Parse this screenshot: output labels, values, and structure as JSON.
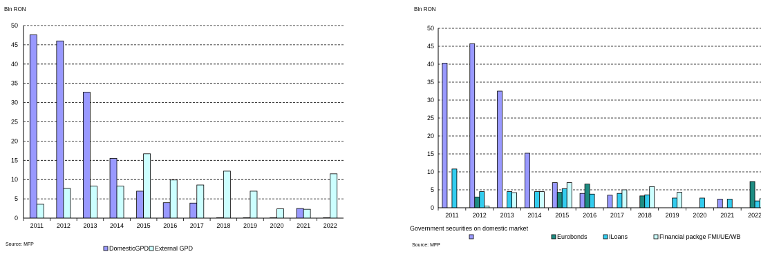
{
  "colors": {
    "domestic": "#9999FF",
    "external": "#CCFFFF",
    "eurobonds": "#1E8C82",
    "iloans": "#33CCEE",
    "fmi": "#CCFFFF"
  },
  "chart_data": [
    {
      "type": "bar",
      "unit_label": "Bln RON",
      "categories": [
        "2011",
        "2012",
        "2013",
        "2014",
        "2015",
        "2016",
        "2017",
        "2018",
        "2019",
        "2020",
        "2021",
        "2022"
      ],
      "ylim": [
        0,
        50
      ],
      "yticks": [
        0,
        5,
        10,
        15,
        20,
        25,
        30,
        35,
        40,
        45,
        50
      ],
      "series": [
        {
          "name": "DomesticGPD",
          "color_key": "domestic",
          "values": [
            47.6,
            46.0,
            32.7,
            15.5,
            7.0,
            4.0,
            3.9,
            0.1,
            0.1,
            0.1,
            2.5,
            0.1
          ]
        },
        {
          "name": "External GPD",
          "color_key": "external",
          "values": [
            3.6,
            7.7,
            8.3,
            8.3,
            16.7,
            9.9,
            8.6,
            12.2,
            7.0,
            2.4,
            2.3,
            11.5
          ]
        }
      ],
      "source": "Source: MFP",
      "grid": true,
      "legend_position": "bottom"
    },
    {
      "type": "bar",
      "unit_label": "Bln RON",
      "categories": [
        "2011",
        "2012",
        "2013",
        "2014",
        "2015",
        "2016",
        "2017",
        "2018",
        "2019",
        "2020",
        "2021",
        "2022"
      ],
      "ylim": [
        0,
        50
      ],
      "yticks": [
        0,
        5,
        10,
        15,
        20,
        25,
        30,
        35,
        40,
        45,
        50
      ],
      "series": [
        {
          "name": "Government securities on domestic market",
          "color_key": "domestic",
          "values": [
            40.3,
            45.7,
            32.5,
            15.2,
            7.0,
            4.0,
            3.5,
            0.0,
            0.0,
            0.0,
            2.4,
            0.0
          ]
        },
        {
          "name": "Eurobonds",
          "color_key": "eurobonds",
          "values": [
            0,
            3.0,
            0,
            0,
            4.3,
            6.6,
            0,
            3.3,
            0,
            0,
            0,
            7.3
          ]
        },
        {
          "name": "ILoans",
          "color_key": "iloans",
          "values": [
            10.8,
            4.5,
            4.5,
            4.5,
            5.3,
            3.8,
            4.0,
            3.6,
            2.7,
            2.7,
            2.4,
            1.9
          ]
        },
        {
          "name": "Financial packge FMI/UE/WB",
          "color_key": "fmi",
          "values": [
            0,
            0.5,
            4.2,
            4.5,
            7.0,
            0,
            5.0,
            5.9,
            4.3,
            0,
            0,
            2.5
          ]
        }
      ],
      "source": "Source: MFP",
      "grid": true,
      "legend_position": "bottom"
    }
  ]
}
